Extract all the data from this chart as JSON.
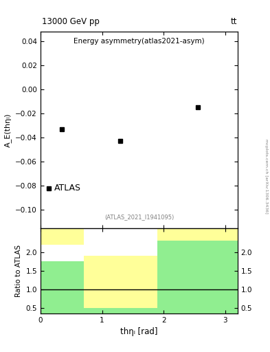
{
  "title_top": "13000 GeV pp",
  "title_right": "tt",
  "main_title": "Energy asymmetry(atlas2021-asym)",
  "xlabel": "thηₗ [rad]",
  "ylabel_main": "A_E(thηₗ)",
  "ylabel_ratio": "Ratio to ATLAS",
  "annotation": "(ATLAS_2021_I1941095)",
  "side_text": "mcplots.cern.ch [arXiv:1306.3436]",
  "data_x": [
    0.35,
    1.3,
    2.55
  ],
  "data_y": [
    -0.033,
    -0.043,
    -0.015
  ],
  "legend_label": "ATLAS",
  "ylim_main": [
    -0.115,
    0.048
  ],
  "ylim_ratio": [
    0.35,
    2.65
  ],
  "xlim": [
    0.0,
    3.2
  ],
  "yticks_main": [
    -0.1,
    -0.08,
    -0.06,
    -0.04,
    -0.02,
    0.0,
    0.02,
    0.04
  ],
  "yticks_ratio": [
    0.5,
    1.0,
    1.5,
    2.0
  ],
  "xticks": [
    0,
    1,
    2,
    3
  ],
  "bin_edges": [
    0.0,
    0.7,
    1.9,
    3.2
  ],
  "ratio_green_lo": [
    0.35,
    0.35,
    0.35
  ],
  "ratio_green_hi": [
    1.75,
    1.5,
    2.4
  ],
  "ratio_yellow_lo": [
    2.2,
    0.5,
    2.3
  ],
  "ratio_yellow_hi": [
    2.65,
    1.9,
    2.65
  ],
  "green_color": "#90EE90",
  "yellow_color": "#FFFF99",
  "marker_color": "black",
  "marker_size": 5,
  "marker_style": "s"
}
